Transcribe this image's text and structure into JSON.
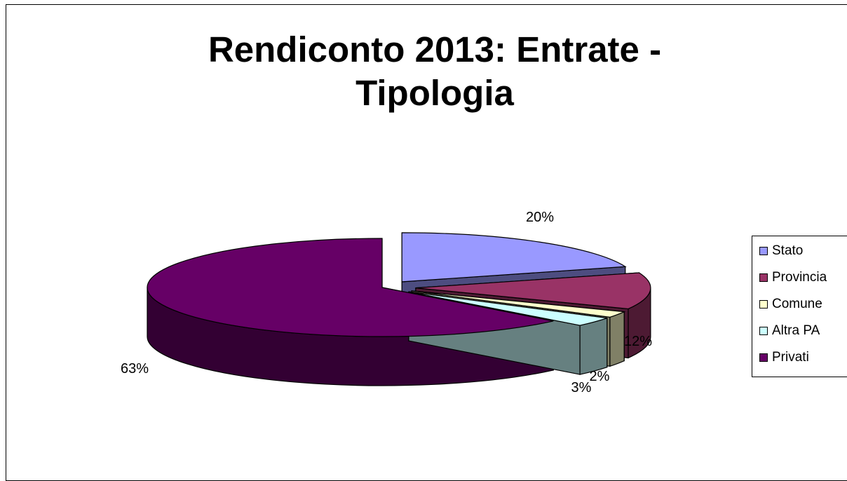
{
  "chart_data": {
    "type": "pie",
    "title_lines": [
      "Rendiconto 2013: Entrate -",
      "Tipologia"
    ],
    "categories": [
      "Stato",
      "Provincia",
      "Comune",
      "Altra PA",
      "Privati"
    ],
    "values": [
      20,
      12,
      2,
      3,
      63
    ],
    "data_labels": [
      "20%",
      "12%",
      "2%",
      "3%",
      "63%"
    ],
    "colors": [
      "#9999ff",
      "#993366",
      "#ffffcc",
      "#ccffff",
      "#660066"
    ],
    "side_colors": [
      "#4d4d80",
      "#4d1a33",
      "#808066",
      "#668080",
      "#330033"
    ],
    "legend_position": "right",
    "view": "3d-exploded"
  }
}
